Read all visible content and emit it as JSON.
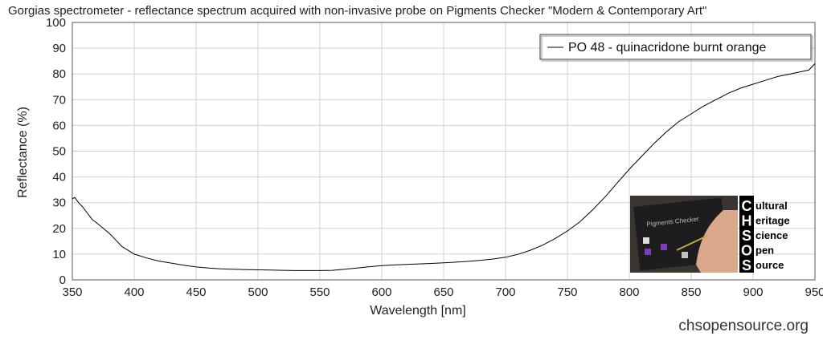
{
  "chart_data": {
    "type": "line",
    "title": "Gorgias spectrometer - reflectance spectrum acquired with non-invasive probe on Pigments Checker \"Modern & Contemporary Art\"",
    "xlabel": "Wavelength [nm]",
    "ylabel": "Reflectance (%)",
    "xlim": [
      350,
      950
    ],
    "ylim": [
      0,
      100
    ],
    "xticks": [
      "350",
      "400",
      "450",
      "500",
      "550",
      "600",
      "650",
      "700",
      "750",
      "800",
      "850",
      "900",
      "950"
    ],
    "yticks": [
      "0",
      "10",
      "20",
      "30",
      "40",
      "50",
      "60",
      "70",
      "80",
      "90",
      "100"
    ],
    "grid": true,
    "legend_position": "top-right",
    "color": "#000000",
    "series": [
      {
        "name": "PO 48 - quinacridone burnt orange",
        "x": [
          350,
          352,
          355,
          358,
          362,
          366,
          370,
          375,
          380,
          385,
          390,
          395,
          400,
          410,
          420,
          430,
          440,
          450,
          460,
          470,
          480,
          490,
          500,
          510,
          520,
          530,
          540,
          550,
          560,
          570,
          580,
          590,
          600,
          610,
          620,
          630,
          640,
          650,
          660,
          670,
          680,
          690,
          700,
          710,
          720,
          730,
          740,
          750,
          760,
          770,
          780,
          790,
          800,
          810,
          820,
          830,
          840,
          850,
          860,
          870,
          880,
          890,
          900,
          910,
          920,
          930,
          940,
          945,
          950
        ],
        "y": [
          31.5,
          32,
          30,
          28.5,
          26,
          23.5,
          22,
          20,
          18,
          15.5,
          13,
          11.5,
          10,
          8.5,
          7.3,
          6.5,
          5.7,
          5,
          4.6,
          4.3,
          4.1,
          4,
          3.9,
          3.8,
          3.7,
          3.6,
          3.6,
          3.6,
          3.7,
          4.1,
          4.6,
          5.1,
          5.5,
          5.8,
          6,
          6.2,
          6.4,
          6.6,
          6.9,
          7.2,
          7.6,
          8.1,
          8.8,
          9.9,
          11.5,
          13.5,
          16,
          19,
          22.5,
          27,
          32,
          37.5,
          43,
          48,
          53,
          57.5,
          61.5,
          64.5,
          67.5,
          70,
          72.5,
          74.5,
          76,
          77.5,
          79,
          80,
          81,
          81.5,
          84
        ]
      }
    ]
  },
  "logo": {
    "letters": [
      "C",
      "H",
      "S",
      "O",
      "S"
    ],
    "words": [
      "ultural",
      "eritage",
      "cience",
      "pen",
      "ource"
    ],
    "photo_label": "Pigments Checker"
  },
  "footer": {
    "site": "chsopensource.org"
  }
}
